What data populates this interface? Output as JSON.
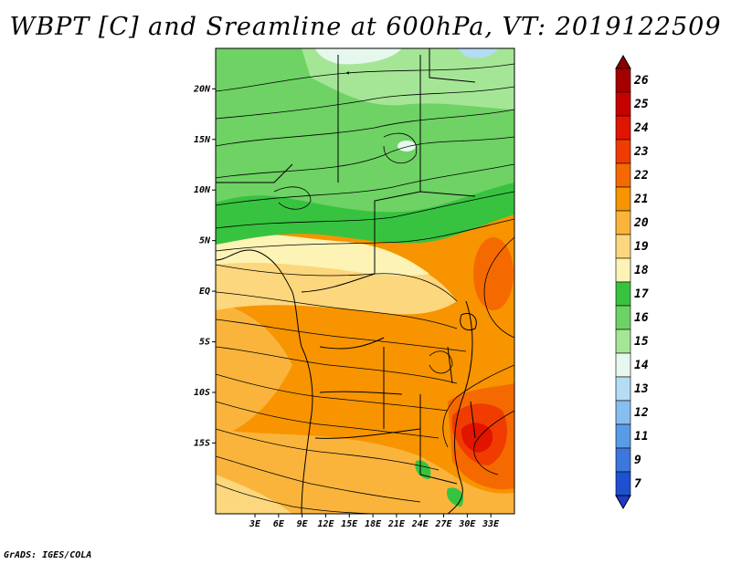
{
  "title": "WBPT [C] and Sreamline at 600hPa, VT: 2019122509",
  "footer": "GrADS: IGES/COLA",
  "map": {
    "lon_range": [
      -2,
      36
    ],
    "lat_range": [
      -22,
      24
    ],
    "x_ticks": [
      {
        "value": 3,
        "label": "3E"
      },
      {
        "value": 6,
        "label": "6E"
      },
      {
        "value": 9,
        "label": "9E"
      },
      {
        "value": 12,
        "label": "12E"
      },
      {
        "value": 15,
        "label": "15E"
      },
      {
        "value": 18,
        "label": "18E"
      },
      {
        "value": 21,
        "label": "21E"
      },
      {
        "value": 24,
        "label": "24E"
      },
      {
        "value": 27,
        "label": "27E"
      },
      {
        "value": 30,
        "label": "30E"
      },
      {
        "value": 33,
        "label": "33E"
      }
    ],
    "y_ticks": [
      {
        "value": 20,
        "label": "20N"
      },
      {
        "value": 15,
        "label": "15N"
      },
      {
        "value": 10,
        "label": "10N"
      },
      {
        "value": 5,
        "label": "5N"
      },
      {
        "value": 0,
        "label": "EQ"
      },
      {
        "value": -5,
        "label": "5S"
      },
      {
        "value": -10,
        "label": "10S"
      },
      {
        "value": -15,
        "label": "15S"
      }
    ]
  },
  "colorbar": {
    "levels": [
      {
        "label": "26",
        "color": "#a50000"
      },
      {
        "label": "25",
        "color": "#c80000"
      },
      {
        "label": "24",
        "color": "#e11400"
      },
      {
        "label": "23",
        "color": "#f03c00"
      },
      {
        "label": "22",
        "color": "#f56a00"
      },
      {
        "label": "21",
        "color": "#f79400"
      },
      {
        "label": "20",
        "color": "#fab43c"
      },
      {
        "label": "19",
        "color": "#fcd77d"
      },
      {
        "label": "18",
        "color": "#fcf3b4"
      },
      {
        "label": "17",
        "color": "#37c340"
      },
      {
        "label": "16",
        "color": "#6ed264"
      },
      {
        "label": "15",
        "color": "#a5e696"
      },
      {
        "label": "14",
        "color": "#e6f8ee"
      },
      {
        "label": "13",
        "color": "#b4dcf5"
      },
      {
        "label": "12",
        "color": "#87bef0"
      },
      {
        "label": "11",
        "color": "#5a9be6"
      },
      {
        "label": "9",
        "color": "#3c78dc"
      },
      {
        "label": "7",
        "color": "#1e50d2"
      }
    ],
    "top_color": "#8c0000",
    "bottom_color": "#1e3cc8"
  }
}
